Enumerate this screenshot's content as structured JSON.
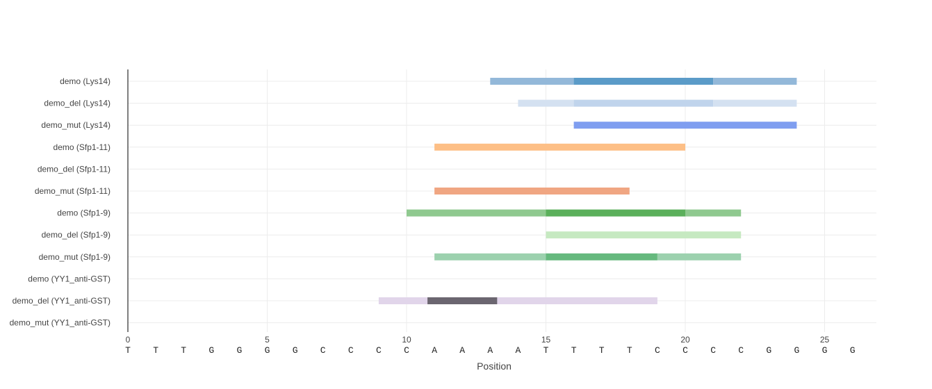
{
  "chart_data": {
    "type": "bar",
    "orientation": "horizontal-range",
    "title": "",
    "xlabel": "Position",
    "ylabel": "",
    "xlim": [
      0,
      26.8
    ],
    "x_ticks": [
      0,
      5,
      10,
      15,
      20,
      25
    ],
    "grid": true,
    "legend": "none",
    "categories": [
      "demo (Lys14)",
      "demo_del (Lys14)",
      "demo_mut (Lys14)",
      "demo (Sfp1-11)",
      "demo_del (Sfp1-11)",
      "demo_mut (Sfp1-11)",
      "demo (Sfp1-9)",
      "demo_del (Sfp1-9)",
      "demo_mut (Sfp1-9)",
      "demo (YY1_anti-GST)",
      "demo_del (YY1_anti-GST)",
      "demo_mut (YY1_anti-GST)"
    ],
    "sequence": [
      "T",
      "T",
      "T",
      "G",
      "G",
      "G",
      "G",
      "C",
      "C",
      "C",
      "C",
      "A",
      "A",
      "A",
      "A",
      "T",
      "T",
      "T",
      "T",
      "C",
      "C",
      "C",
      "C",
      "G",
      "G",
      "G",
      "G"
    ],
    "segments": [
      {
        "row": 0,
        "start": 13,
        "end": 16,
        "color": "#93b8d9"
      },
      {
        "row": 0,
        "start": 16,
        "end": 21,
        "color": "#5b9bc8"
      },
      {
        "row": 0,
        "start": 21,
        "end": 24,
        "color": "#93b8d9"
      },
      {
        "row": 1,
        "start": 14,
        "end": 16,
        "color": "#d4e1f1"
      },
      {
        "row": 1,
        "start": 16,
        "end": 21,
        "color": "#c0d4ec"
      },
      {
        "row": 1,
        "start": 21,
        "end": 24,
        "color": "#d4e1f1"
      },
      {
        "row": 2,
        "start": 16,
        "end": 24,
        "color": "#7f9ef0"
      },
      {
        "row": 3,
        "start": 11,
        "end": 20,
        "color": "#fdbf86"
      },
      {
        "row": 5,
        "start": 11,
        "end": 18,
        "color": "#f0a682"
      },
      {
        "row": 6,
        "start": 10,
        "end": 15,
        "color": "#8fc98f"
      },
      {
        "row": 6,
        "start": 15,
        "end": 20,
        "color": "#5bb05b"
      },
      {
        "row": 6,
        "start": 20,
        "end": 22,
        "color": "#8fc98f"
      },
      {
        "row": 7,
        "start": 15,
        "end": 22,
        "color": "#c6e9c1"
      },
      {
        "row": 8,
        "start": 11,
        "end": 15,
        "color": "#9cd1ae"
      },
      {
        "row": 8,
        "start": 15,
        "end": 19,
        "color": "#66b97e"
      },
      {
        "row": 8,
        "start": 19,
        "end": 22,
        "color": "#9cd1ae"
      },
      {
        "row": 10,
        "start": 9,
        "end": 19,
        "color": "#e1d5ea"
      },
      {
        "row": 10,
        "start": 10.75,
        "end": 13.25,
        "color": "#6b6670"
      }
    ]
  }
}
